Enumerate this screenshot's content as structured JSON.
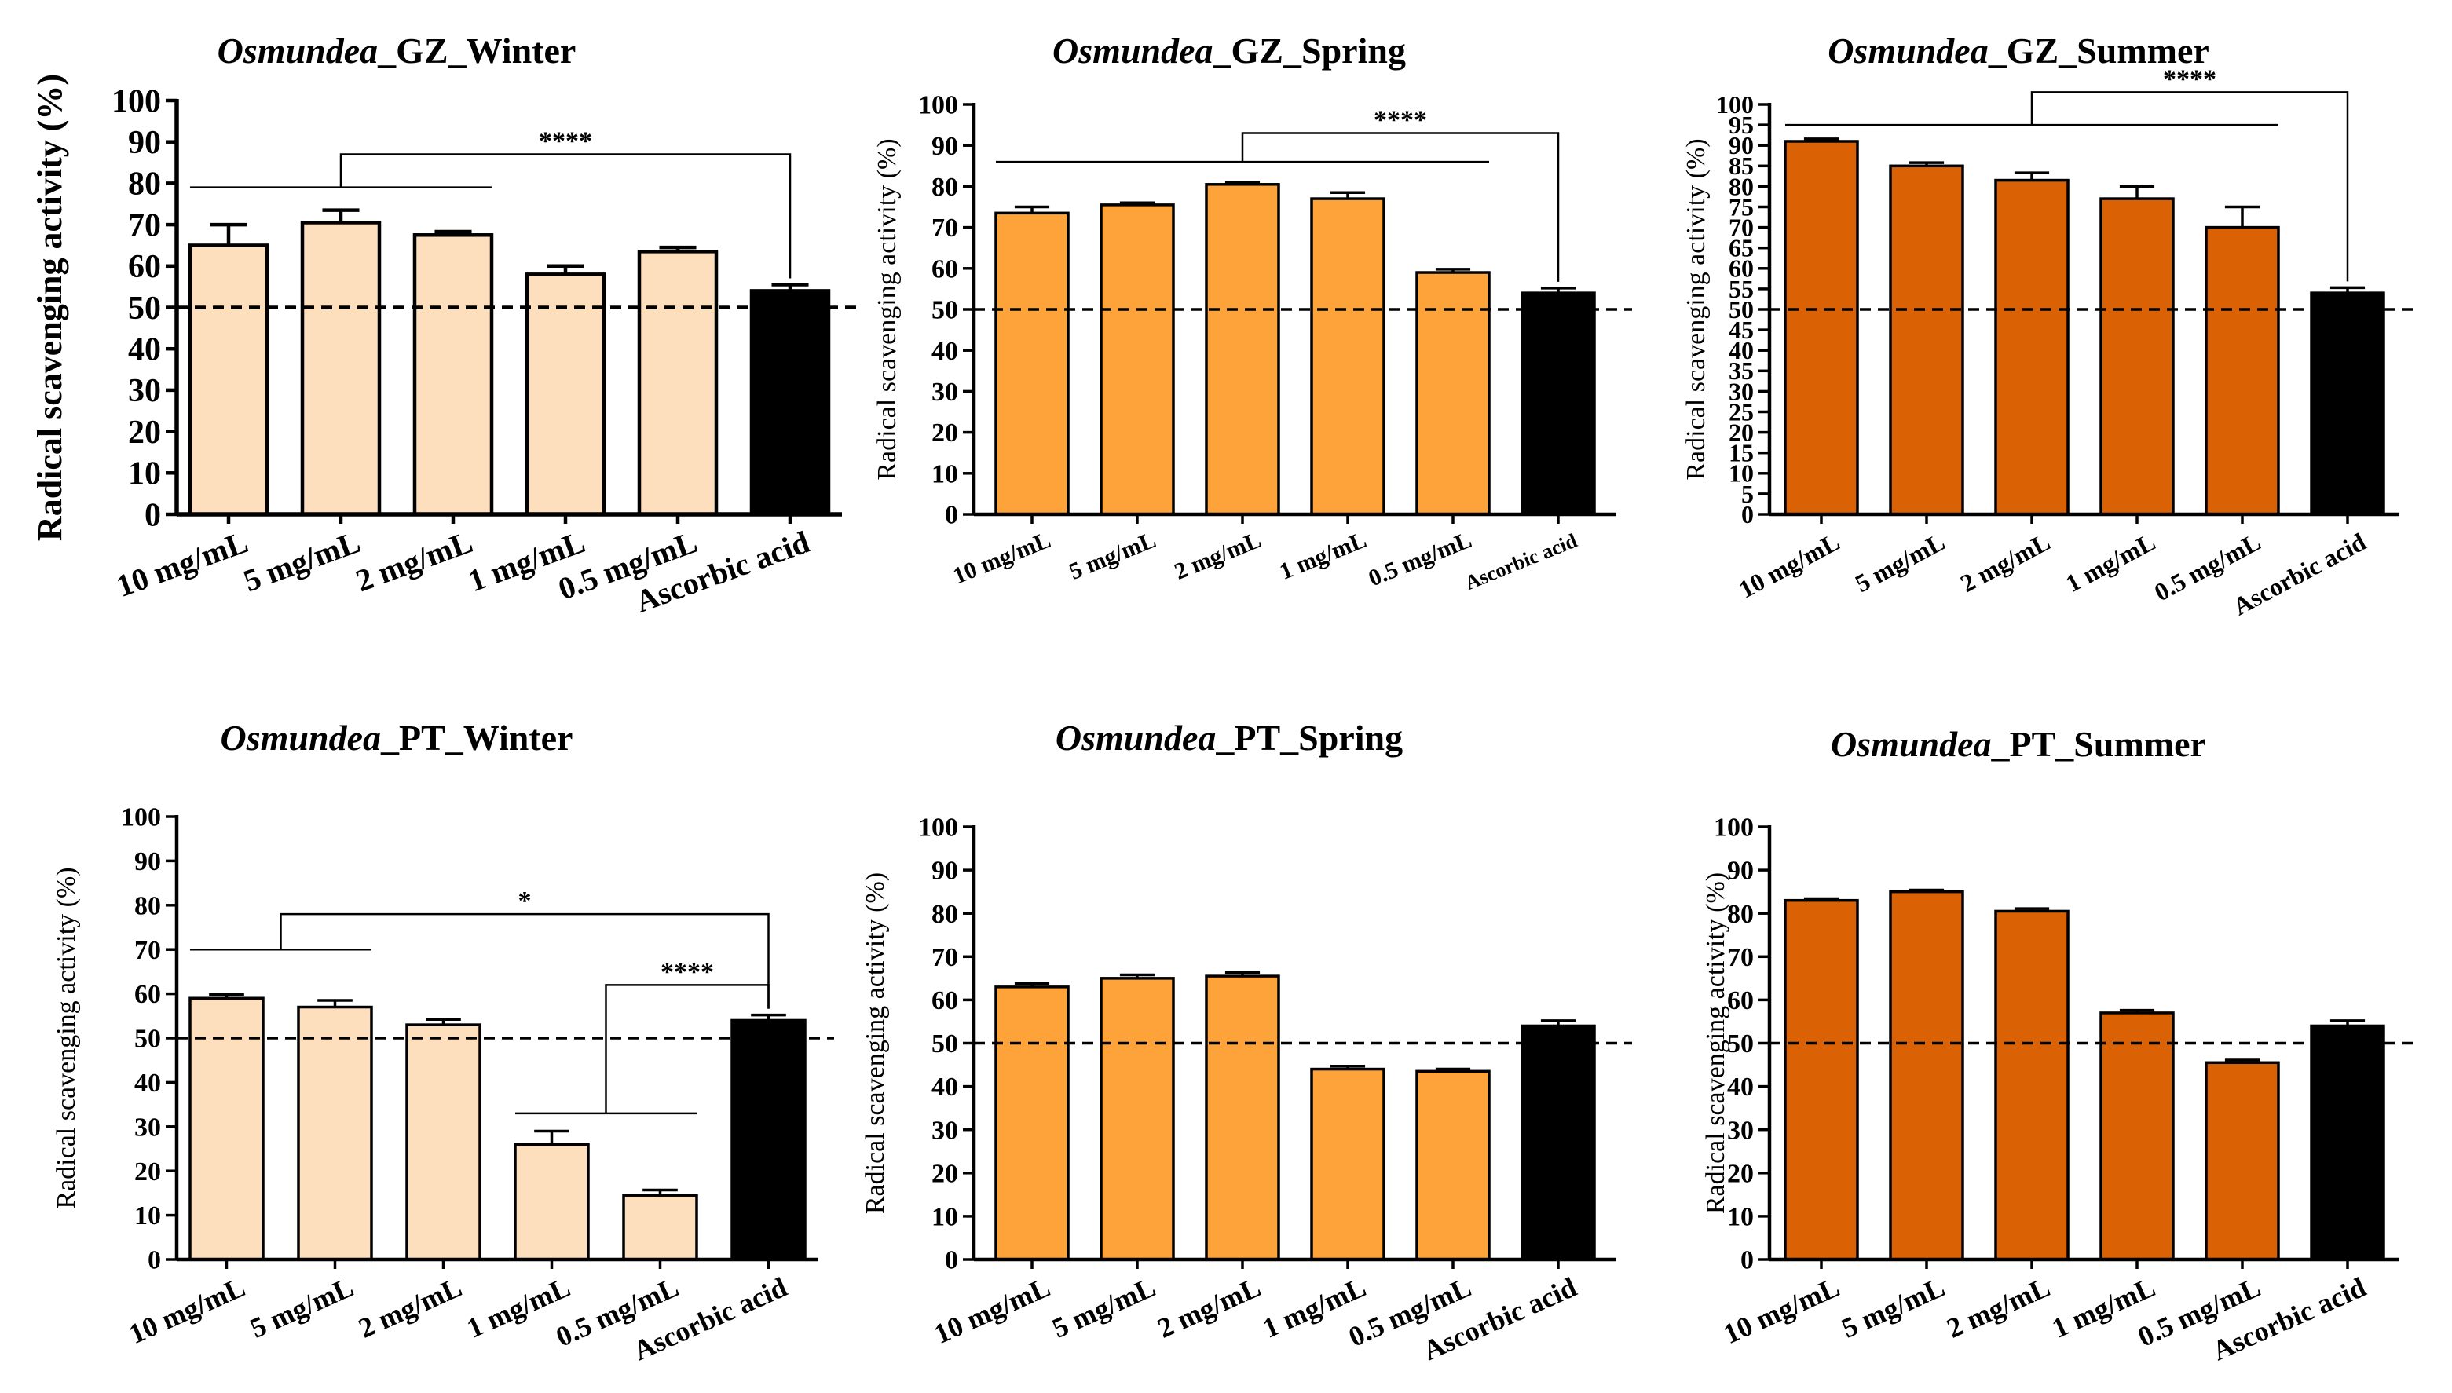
{
  "figure": {
    "y_label": "Radical scavenging activity (%)",
    "threshold": 50,
    "colors": {
      "winter": "#FDDFBE",
      "spring": "#FDA33A",
      "summer": "#DA6205",
      "control": "#000000"
    }
  },
  "chart_data": [
    {
      "type": "bar",
      "id": "gz-winter",
      "title_italic": "Osmundea",
      "title_rest": "_GZ_Winter",
      "ylabel": "Radical scavenging activity (%)",
      "categories": [
        "10 mg/mL",
        "5 mg/mL",
        "2 mg/mL",
        "1 mg/mL",
        "0.5 mg/mL",
        "Ascorbic acid"
      ],
      "values": [
        65,
        70.5,
        67.5,
        58,
        63.5,
        54
      ],
      "errors": [
        5,
        3,
        0.8,
        2,
        1,
        1.5
      ],
      "yticks": [
        0,
        10,
        20,
        30,
        40,
        50,
        60,
        70,
        80,
        90,
        100
      ],
      "ylim": [
        0,
        100
      ],
      "bar_color": "winter",
      "significance": [
        {
          "label": "****",
          "group_from": 0,
          "group_to": 2,
          "group_y": 79,
          "target": 5,
          "bracket_y": 87
        }
      ]
    },
    {
      "type": "bar",
      "id": "gz-spring",
      "title_italic": "Osmundea",
      "title_rest": "_GZ_Spring",
      "ylabel": "Radical scavenging activity (%)",
      "categories": [
        "10 mg/mL",
        "5 mg/mL",
        "2 mg/mL",
        "1 mg/mL",
        "0.5 mg/mL",
        "Ascorbic acid"
      ],
      "values": [
        73.5,
        75.5,
        80.5,
        77,
        59,
        54
      ],
      "errors": [
        1.5,
        0.5,
        0.5,
        1.5,
        0.8,
        1.2
      ],
      "yticks": [
        0,
        10,
        20,
        30,
        40,
        50,
        60,
        70,
        80,
        90,
        100
      ],
      "ylim": [
        0,
        100
      ],
      "bar_color": "spring",
      "significance": [
        {
          "label": "****",
          "group_from": 0,
          "group_to": 4,
          "group_y": 86,
          "target": 5,
          "bracket_y": 93
        }
      ]
    },
    {
      "type": "bar",
      "id": "gz-summer",
      "title_italic": "Osmundea",
      "title_rest": "_GZ_Summer",
      "ylabel": "Radical scavenging activity (%)",
      "categories": [
        "10 mg/mL",
        "5 mg/mL",
        "2 mg/mL",
        "1 mg/mL",
        "0.5 mg/mL",
        "Ascorbic acid"
      ],
      "values": [
        91,
        85,
        81.5,
        77,
        70,
        54
      ],
      "errors": [
        0.6,
        0.8,
        1.8,
        3,
        5,
        1.3
      ],
      "yticks": [
        0,
        5,
        10,
        15,
        20,
        25,
        30,
        35,
        40,
        45,
        50,
        55,
        60,
        65,
        70,
        75,
        80,
        85,
        90,
        95,
        100
      ],
      "ylim": [
        0,
        100
      ],
      "bar_color": "summer",
      "significance": [
        {
          "label": "****",
          "group_from": 0,
          "group_to": 4,
          "group_y": 95,
          "target": 5,
          "bracket_y": 103
        }
      ]
    },
    {
      "type": "bar",
      "id": "pt-winter",
      "title_italic": "Osmundea",
      "title_rest": "_PT_Winter",
      "ylabel": "Radical scavenging activity (%)",
      "categories": [
        "10 mg/mL",
        "5 mg/mL",
        "2 mg/mL",
        "1 mg/mL",
        "0.5 mg/mL",
        "Ascorbic acid"
      ],
      "values": [
        59,
        57,
        53,
        26,
        14.5,
        54
      ],
      "errors": [
        0.8,
        1.5,
        1.2,
        3,
        1.2,
        1.2
      ],
      "yticks": [
        0,
        10,
        20,
        30,
        40,
        50,
        60,
        70,
        80,
        90,
        100
      ],
      "ylim": [
        0,
        100
      ],
      "bar_color": "winter",
      "significance": [
        {
          "label": "*",
          "group_from": 0,
          "group_to": 1,
          "group_y": 70,
          "target": 5,
          "bracket_y": 78
        },
        {
          "label": "****",
          "group_from": 3,
          "group_to": 4,
          "group_y": 33,
          "target": 5,
          "bracket_y": 62
        }
      ]
    },
    {
      "type": "bar",
      "id": "pt-spring",
      "title_italic": "Osmundea",
      "title_rest": "_PT_Spring",
      "ylabel": "Radical scavenging activity (%)",
      "categories": [
        "10 mg/mL",
        "5 mg/mL",
        "2 mg/mL",
        "1 mg/mL",
        "0.5 mg/mL",
        "Ascorbic acid"
      ],
      "values": [
        63,
        65,
        65.5,
        44,
        43.5,
        54
      ],
      "errors": [
        0.8,
        0.8,
        0.8,
        0.7,
        0.5,
        1.2
      ],
      "yticks": [
        0,
        10,
        20,
        30,
        40,
        50,
        60,
        70,
        80,
        90,
        100
      ],
      "ylim": [
        0,
        100
      ],
      "bar_color": "spring",
      "significance": []
    },
    {
      "type": "bar",
      "id": "pt-summer",
      "title_italic": "Osmundea",
      "title_rest": "_PT_Summer",
      "ylabel": "Radical scavenging activity (%)",
      "categories": [
        "10 mg/mL",
        "5 mg/mL",
        "2 mg/mL",
        "1 mg/mL",
        "0.5 mg/mL",
        "Ascorbic acid"
      ],
      "values": [
        83,
        85,
        80.5,
        57,
        45.5,
        54
      ],
      "errors": [
        0.4,
        0.4,
        0.6,
        0.6,
        0.6,
        1.2
      ],
      "yticks": [
        0,
        10,
        20,
        30,
        40,
        50,
        60,
        70,
        80,
        90,
        100
      ],
      "ylim": [
        0,
        100
      ],
      "bar_color": "summer",
      "significance": []
    }
  ]
}
